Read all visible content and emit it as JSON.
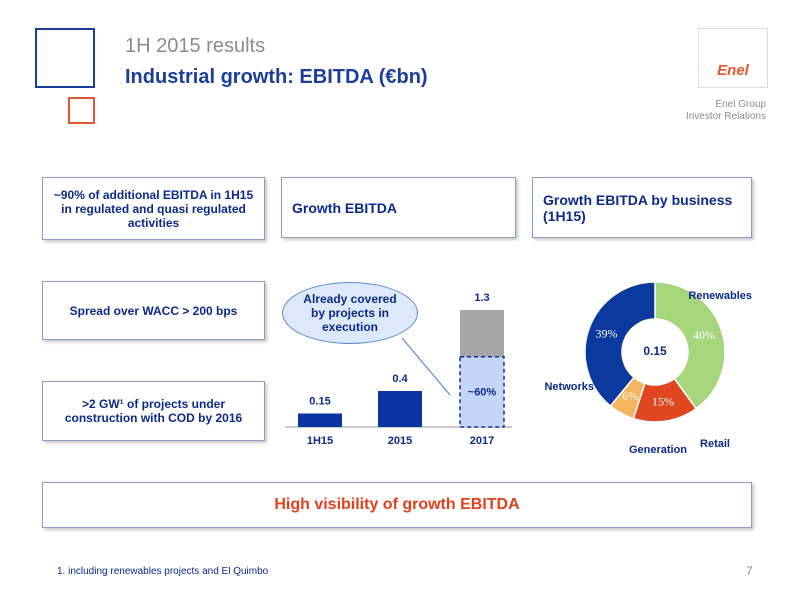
{
  "header": {
    "subtitle": "1H 2015 results",
    "title": "Industrial growth: EBITDA (€bn)",
    "logo": "Enel",
    "company": "Enel Group",
    "department": "Investor Relations"
  },
  "left_boxes": [
    "~90% of additional EBITDA in 1H15 in regulated and quasi regulated activities",
    "Spread over  WACC > 200 bps",
    ">2 GW¹ of projects under construction with COD by 2016"
  ],
  "panel_titles": [
    "Growth EBITDA",
    "Growth  EBITDA by business (1H15)"
  ],
  "banner": "High visibility of growth EBITDA",
  "footnote": "1. including renewables projects and El Quimbo",
  "page_number": "7",
  "chart_data": [
    {
      "type": "bar",
      "categories": [
        "1H15",
        "2015",
        "2017"
      ],
      "values": [
        0.15,
        0.4,
        1.3
      ],
      "color": "#0a32a0",
      "covered_share": [
        null,
        null,
        60
      ],
      "covered_labels": [
        null,
        null,
        "~60%"
      ],
      "covered_color": "#c5d5f5",
      "remainder_color": "#a6a6a6",
      "callout": "Already covered by projects in execution"
    },
    {
      "type": "donut",
      "categories": [
        "Renewables",
        "Retail",
        "Generation",
        "Networks"
      ],
      "values": [
        40,
        15,
        6,
        39
      ],
      "value_labels": [
        "40%",
        "15%",
        "6%",
        "39%"
      ],
      "colors": [
        "#a6d57c",
        "#e0461f",
        "#f4b35d",
        "#0a3a9e"
      ],
      "total": 0.15
    }
  ]
}
